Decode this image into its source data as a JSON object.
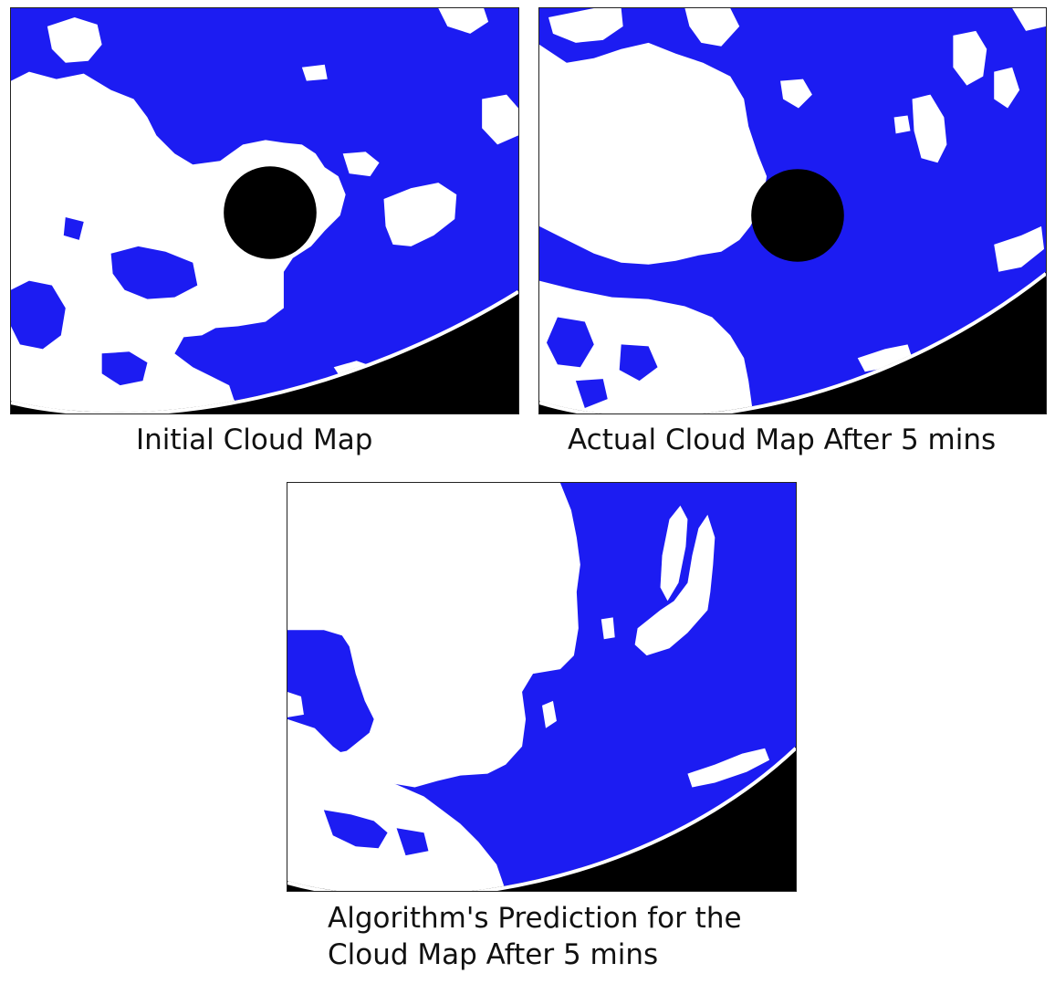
{
  "panels": [
    {
      "caption_lines": [
        "Initial Cloud Map"
      ]
    },
    {
      "caption_lines": [
        "Actual Cloud Map After 5 mins"
      ]
    },
    {
      "caption_lines": [
        "Algorithm's Prediction for the",
        "Cloud Map After 5 mins"
      ]
    }
  ],
  "colors": {
    "sky": "#1c1cf2",
    "cloud": "#ffffff",
    "mask": "#000000",
    "frame": "#222222"
  }
}
